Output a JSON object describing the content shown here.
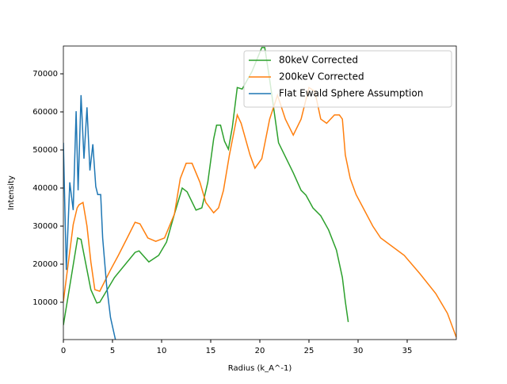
{
  "chart_data": {
    "type": "line",
    "xlabel": "Radius (k_A^-1)",
    "ylabel": "Intensity",
    "xlim": [
      0,
      40
    ],
    "ylim": [
      200,
      77300
    ],
    "xticks": [
      0,
      5,
      10,
      15,
      20,
      25,
      30,
      35
    ],
    "yticks": [
      10000,
      20000,
      30000,
      40000,
      50000,
      60000,
      70000
    ],
    "legend": "upper right",
    "series": [
      {
        "name": "80keV Corrected",
        "color": "#2ca02c",
        "x": [
          0,
          1.45,
          1.8,
          2.8,
          3.4,
          3.7,
          5.2,
          7.3,
          7.7,
          8.7,
          9.7,
          10.5,
          11.3,
          12.1,
          12.6,
          13.5,
          14.1,
          14.7,
          15.3,
          15.6,
          16,
          16.4,
          16.8,
          17.2,
          17.7,
          18.2,
          19.2,
          20.2,
          20.5,
          21,
          21.9,
          23.4,
          24.2,
          24.7,
          25.4,
          26.2,
          27,
          27.8,
          28.4,
          28.7,
          29
        ],
        "values": [
          4000,
          26900,
          26500,
          13300,
          9800,
          10000,
          16500,
          23100,
          23500,
          20600,
          22300,
          25800,
          33100,
          40000,
          39000,
          34200,
          34800,
          41500,
          52900,
          56500,
          56500,
          52300,
          50200,
          56000,
          66400,
          66000,
          70600,
          76900,
          76900,
          68500,
          51900,
          44000,
          39400,
          38100,
          34800,
          32700,
          29000,
          23700,
          16500,
          10200,
          4800
        ]
      },
      {
        "name": "200keV Corrected",
        "color": "#ff7f0e",
        "x": [
          0,
          1,
          1.4,
          1.6,
          2,
          2.4,
          2.8,
          3.2,
          3.7,
          4.8,
          5.6,
          6.5,
          7.3,
          7.8,
          8.6,
          9.4,
          10.3,
          11.3,
          11.9,
          12.5,
          13.1,
          13.9,
          14.5,
          15.3,
          15.8,
          16.3,
          16.9,
          17.7,
          18.1,
          19,
          19.5,
          20.2,
          21,
          21.8,
          22.6,
          23.4,
          24.2,
          25,
          25.6,
          26.2,
          26.8,
          27.6,
          28.1,
          28.4,
          28.7,
          29.2,
          29.8,
          31.5,
          32.3,
          34.7,
          36.3,
          37.9,
          39.1,
          40
        ],
        "values": [
          10200,
          30400,
          34800,
          35600,
          36200,
          30000,
          20600,
          13300,
          12900,
          18500,
          22300,
          26900,
          31000,
          30600,
          26900,
          26000,
          26900,
          33100,
          42500,
          46500,
          46500,
          41500,
          36200,
          33500,
          34800,
          39400,
          48700,
          59200,
          57000,
          48700,
          45200,
          47700,
          58100,
          64400,
          58100,
          53900,
          58100,
          66400,
          65400,
          58100,
          57000,
          59200,
          59200,
          58100,
          48700,
          42500,
          38300,
          30000,
          26900,
          22300,
          17500,
          12300,
          7100,
          800
        ]
      },
      {
        "name": "Flat Ewald Sphere Assumption",
        "color": "#1f77b4",
        "x": [
          0,
          0.3,
          0.65,
          1,
          1.3,
          1.5,
          1.8,
          2.1,
          2.4,
          2.7,
          3,
          3.3,
          3.5,
          3.8,
          4,
          4.4,
          4.8,
          5.3
        ],
        "values": [
          51900,
          18500,
          41500,
          34200,
          60200,
          39400,
          64400,
          47700,
          61200,
          44600,
          51500,
          40400,
          38300,
          38300,
          26900,
          14400,
          6000,
          200
        ]
      }
    ]
  }
}
